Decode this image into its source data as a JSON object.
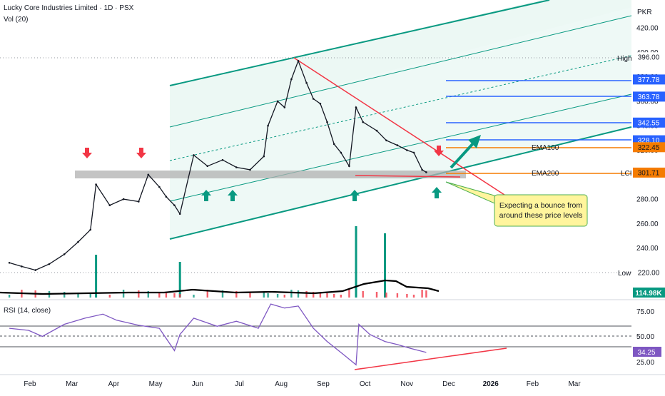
{
  "header": {
    "title": "Lucky Core Industries Limited · 1D · PSX",
    "volume_label": "Vol (20)"
  },
  "currency": "PKR",
  "chart_data": {
    "type": "line",
    "title": "Lucky Core Industries Limited · 1D · PSX",
    "price_axis": {
      "ticks": [
        "420.00",
        "400.00",
        "380.00",
        "360.00",
        "340.00",
        "320.00",
        "300.00",
        "280.00",
        "260.00",
        "240.00",
        "220.00"
      ],
      "ylim": [
        210,
        430
      ]
    },
    "time_axis": [
      "Feb",
      "Mar",
      "Apr",
      "May",
      "Jun",
      "Jul",
      "Aug",
      "Sep",
      "Oct",
      "Nov",
      "Dec",
      "2026",
      "Feb",
      "Mar"
    ],
    "series": [
      {
        "name": "Price",
        "color": "#131722",
        "x": [
          "2025-01-01",
          "2025-01-10",
          "2025-01-20",
          "2025-01-30",
          "2025-02-10",
          "2025-02-20",
          "2025-03-01",
          "2025-03-05",
          "2025-03-15",
          "2025-03-25",
          "2025-04-05",
          "2025-04-12",
          "2025-04-20",
          "2025-04-25",
          "2025-05-01",
          "2025-05-05",
          "2025-05-15",
          "2025-05-25",
          "2025-06-05",
          "2025-06-15",
          "2025-06-25",
          "2025-07-05",
          "2025-07-08",
          "2025-07-15",
          "2025-07-20",
          "2025-07-25",
          "2025-07-30",
          "2025-08-05",
          "2025-08-10",
          "2025-08-15",
          "2025-08-20",
          "2025-08-25",
          "2025-08-30",
          "2025-09-05",
          "2025-09-10",
          "2025-09-15",
          "2025-09-25",
          "2025-10-02",
          "2025-10-10",
          "2025-10-17",
          "2025-10-22",
          "2025-10-28",
          "2025-10-31"
        ],
        "values": [
          228,
          225,
          222,
          227,
          235,
          245,
          255,
          292,
          275,
          280,
          278,
          300,
          290,
          282,
          275,
          268,
          316,
          307,
          312,
          306,
          304,
          315,
          340,
          360,
          355,
          378,
          393,
          375,
          362,
          358,
          343,
          325,
          318,
          307,
          355,
          343,
          336,
          328,
          324,
          320,
          318,
          304,
          302
        ]
      },
      {
        "name": "RSI",
        "color": "#7e57c2",
        "x": [
          "2025-01-01",
          "2025-01-15",
          "2025-01-25",
          "2025-02-10",
          "2025-02-25",
          "2025-03-10",
          "2025-03-20",
          "2025-04-05",
          "2025-04-20",
          "2025-05-01",
          "2025-05-05",
          "2025-05-15",
          "2025-06-01",
          "2025-06-15",
          "2025-07-01",
          "2025-07-10",
          "2025-07-20",
          "2025-07-30",
          "2025-08-10",
          "2025-08-20",
          "2025-09-01",
          "2025-09-10",
          "2025-09-12",
          "2025-09-20",
          "2025-10-01",
          "2025-10-10",
          "2025-10-20",
          "2025-10-31"
        ],
        "values": [
          58,
          56,
          50,
          62,
          68,
          72,
          66,
          61,
          58,
          36,
          52,
          68,
          60,
          65,
          58,
          82,
          78,
          80,
          58,
          45,
          32,
          22,
          62,
          52,
          45,
          42,
          38,
          34.25
        ]
      }
    ],
    "volume": {
      "label": "Vol (20)",
      "last": "114.98K",
      "spike_dates": [
        "2025-03-05",
        "2025-05-05",
        "2025-09-10",
        "2025-10-01"
      ]
    },
    "rsi": {
      "label": "RSI (14, close)",
      "last": "34.25",
      "levels": [
        70,
        50,
        30
      ],
      "ticks": [
        "75.00",
        "50.00",
        "25.00"
      ]
    },
    "price_labels": [
      {
        "text": "High",
        "value": 396.0,
        "label": "396.00",
        "color": "#ffffff",
        "text_color": "#131722"
      },
      {
        "text": "",
        "value": 377.78,
        "label": "377.78",
        "color": "#2962ff",
        "text_color": "#ffffff"
      },
      {
        "text": "",
        "value": 363.78,
        "label": "363.78",
        "color": "#2962ff",
        "text_color": "#ffffff"
      },
      {
        "text": "",
        "value": 342.55,
        "label": "342.55",
        "color": "#2962ff",
        "text_color": "#ffffff"
      },
      {
        "text": "",
        "value": 328.1,
        "label": "328.10",
        "color": "#2962ff",
        "text_color": "#ffffff"
      },
      {
        "text": "EMA100",
        "value": 322.45,
        "label": "322.45",
        "color": "#f57c00",
        "text_color": "#131722"
      },
      {
        "text": "LCI",
        "value": 303.02,
        "label": "303.02",
        "color": "#ffffff",
        "text_color": "#131722"
      },
      {
        "text": "",
        "value": 301.71,
        "label": "301.71",
        "color": "#f57c00",
        "text_color": "#131722"
      },
      {
        "text": "Low",
        "value": 220.0,
        "label": "220.00",
        "color": "#ffffff",
        "text_color": "#131722"
      }
    ],
    "ema_labels": [
      "EMA100",
      "EMA200"
    ],
    "annotation": "Expecting a bounce from around these price levels",
    "grid": false,
    "colors": {
      "up": "#089981",
      "down": "#f23645",
      "channel": "#089981",
      "channel_fill": "#e0f4ef",
      "level_line": "#2962ff",
      "ema": "#f57c00",
      "support_zone": "#b0b0b0",
      "trendline": "#f23645",
      "callout_bg": "#fff59d",
      "rsi": "#7e57c2"
    }
  }
}
